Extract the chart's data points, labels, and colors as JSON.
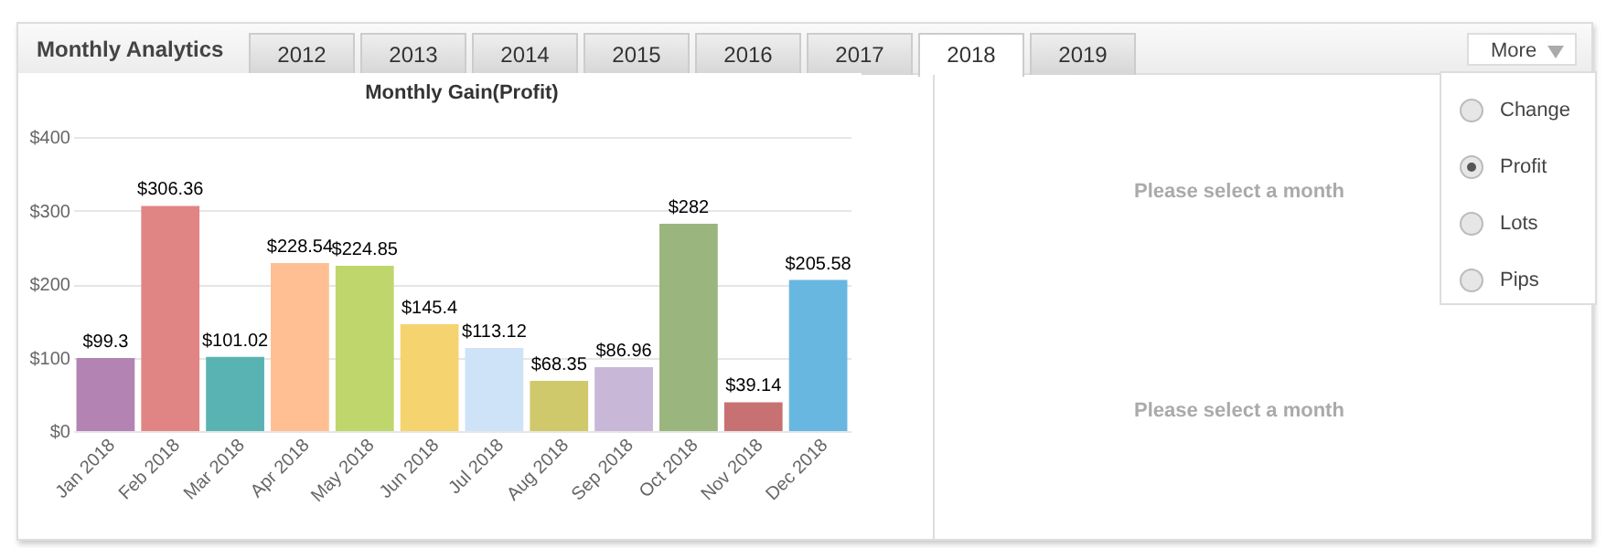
{
  "chart_data": {
    "type": "bar",
    "title": "Monthly Analytics",
    "subtitle": "Monthly Gain(Profit)",
    "categories": [
      "Jan 2018",
      "Feb 2018",
      "Mar 2018",
      "Apr 2018",
      "May 2018",
      "Jun 2018",
      "Jul 2018",
      "Aug 2018",
      "Sep 2018",
      "Oct 2018",
      "Nov 2018",
      "Dec 2018"
    ],
    "values": [
      99.3,
      306.36,
      101.02,
      228.54,
      224.85,
      145.4,
      113.12,
      68.35,
      86.96,
      282,
      39.14,
      205.58
    ],
    "colors": [
      "#b383b3",
      "#e08583",
      "#5ab3b3",
      "#ffbf93",
      "#bed66b",
      "#f5d36f",
      "#cfe3f8",
      "#d0c96b",
      "#c8b7d7",
      "#9bb57e",
      "#c87172",
      "#68b7e0"
    ],
    "value_labels": [
      "$99.3",
      "$306.36",
      "$101.02",
      "$228.54",
      "$224.85",
      "$145.4",
      "$113.12",
      "$68.35",
      "$86.96",
      "$282",
      "$39.14",
      "$205.58"
    ],
    "ylim": [
      0,
      400
    ],
    "yticks": [
      {
        "value": 0,
        "label": "$0"
      },
      {
        "value": 100,
        "label": "$100"
      },
      {
        "value": 200,
        "label": "$200"
      },
      {
        "value": 300,
        "label": "$300"
      },
      {
        "value": 400,
        "label": "$400"
      }
    ],
    "grid": "y",
    "annotations": [
      "2012",
      "2013",
      "2014",
      "2015",
      "2016",
      "2017",
      "2018",
      "2019",
      "More",
      "Change",
      "Profit",
      "Lots",
      "Pips",
      "Please select a month",
      "Please select a month"
    ]
  }
}
